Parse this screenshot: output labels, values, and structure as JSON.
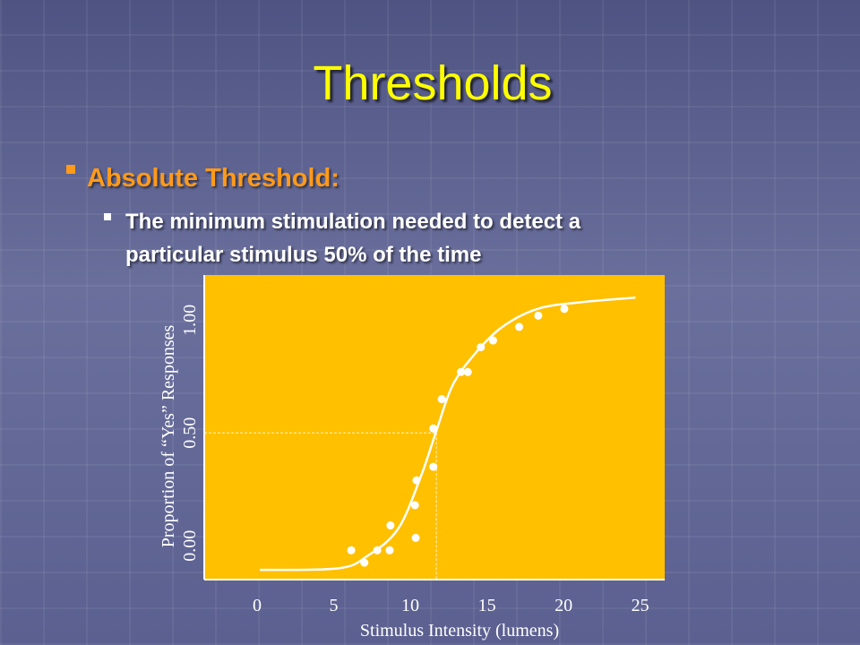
{
  "title": "Thresholds",
  "bullets": [
    "Absolute Threshold:"
  ],
  "sub_bullets": [
    "The minimum stimulation needed to detect a",
    "particular stimulus 50% of the time"
  ],
  "chart_data": {
    "type": "scatter",
    "x_label": "Stimulus Intensity (lumens)",
    "y_label": "Proportion of “Yes” Responses",
    "xlim": [
      -3.45,
      26.6
    ],
    "ylim": [
      -0.15,
      1.2
    ],
    "xticks": [
      0,
      5,
      10,
      15,
      20,
      25
    ],
    "yticks": [
      {
        "value": 0,
        "label": "0.00"
      },
      {
        "value": 0.5,
        "label": "0.50"
      },
      {
        "value": 1,
        "label": "1.00"
      }
    ],
    "background_color": "#ffc000",
    "color": "#ffffff",
    "x": [
      6.14,
      7.0,
      7.84,
      8.65,
      8.7,
      10.35,
      10.3,
      10.4,
      11.5,
      11.5,
      12.05,
      13.3,
      13.75,
      14.6,
      15.4,
      17.1,
      18.35,
      20.05
    ],
    "values": [
      -0.02,
      -0.075,
      -0.02,
      -0.02,
      0.09,
      0.035,
      0.18,
      0.29,
      0.35,
      0.52,
      0.65,
      0.77,
      0.77,
      0.88,
      0.91,
      0.97,
      1.02,
      1.05
    ],
    "fit_x": [
      0.18,
      5.3,
      7.2,
      9.2,
      10.7,
      11.7,
      12.75,
      14.2,
      16,
      18.3,
      21.2,
      24.7
    ],
    "fit_values": [
      -0.107,
      -0.1,
      -0.045,
      0.075,
      0.31,
      0.51,
      0.71,
      0.85,
      0.97,
      1.05,
      1.08,
      1.1
    ],
    "threshold_x": 11.7,
    "threshold_y": 0.5
  }
}
